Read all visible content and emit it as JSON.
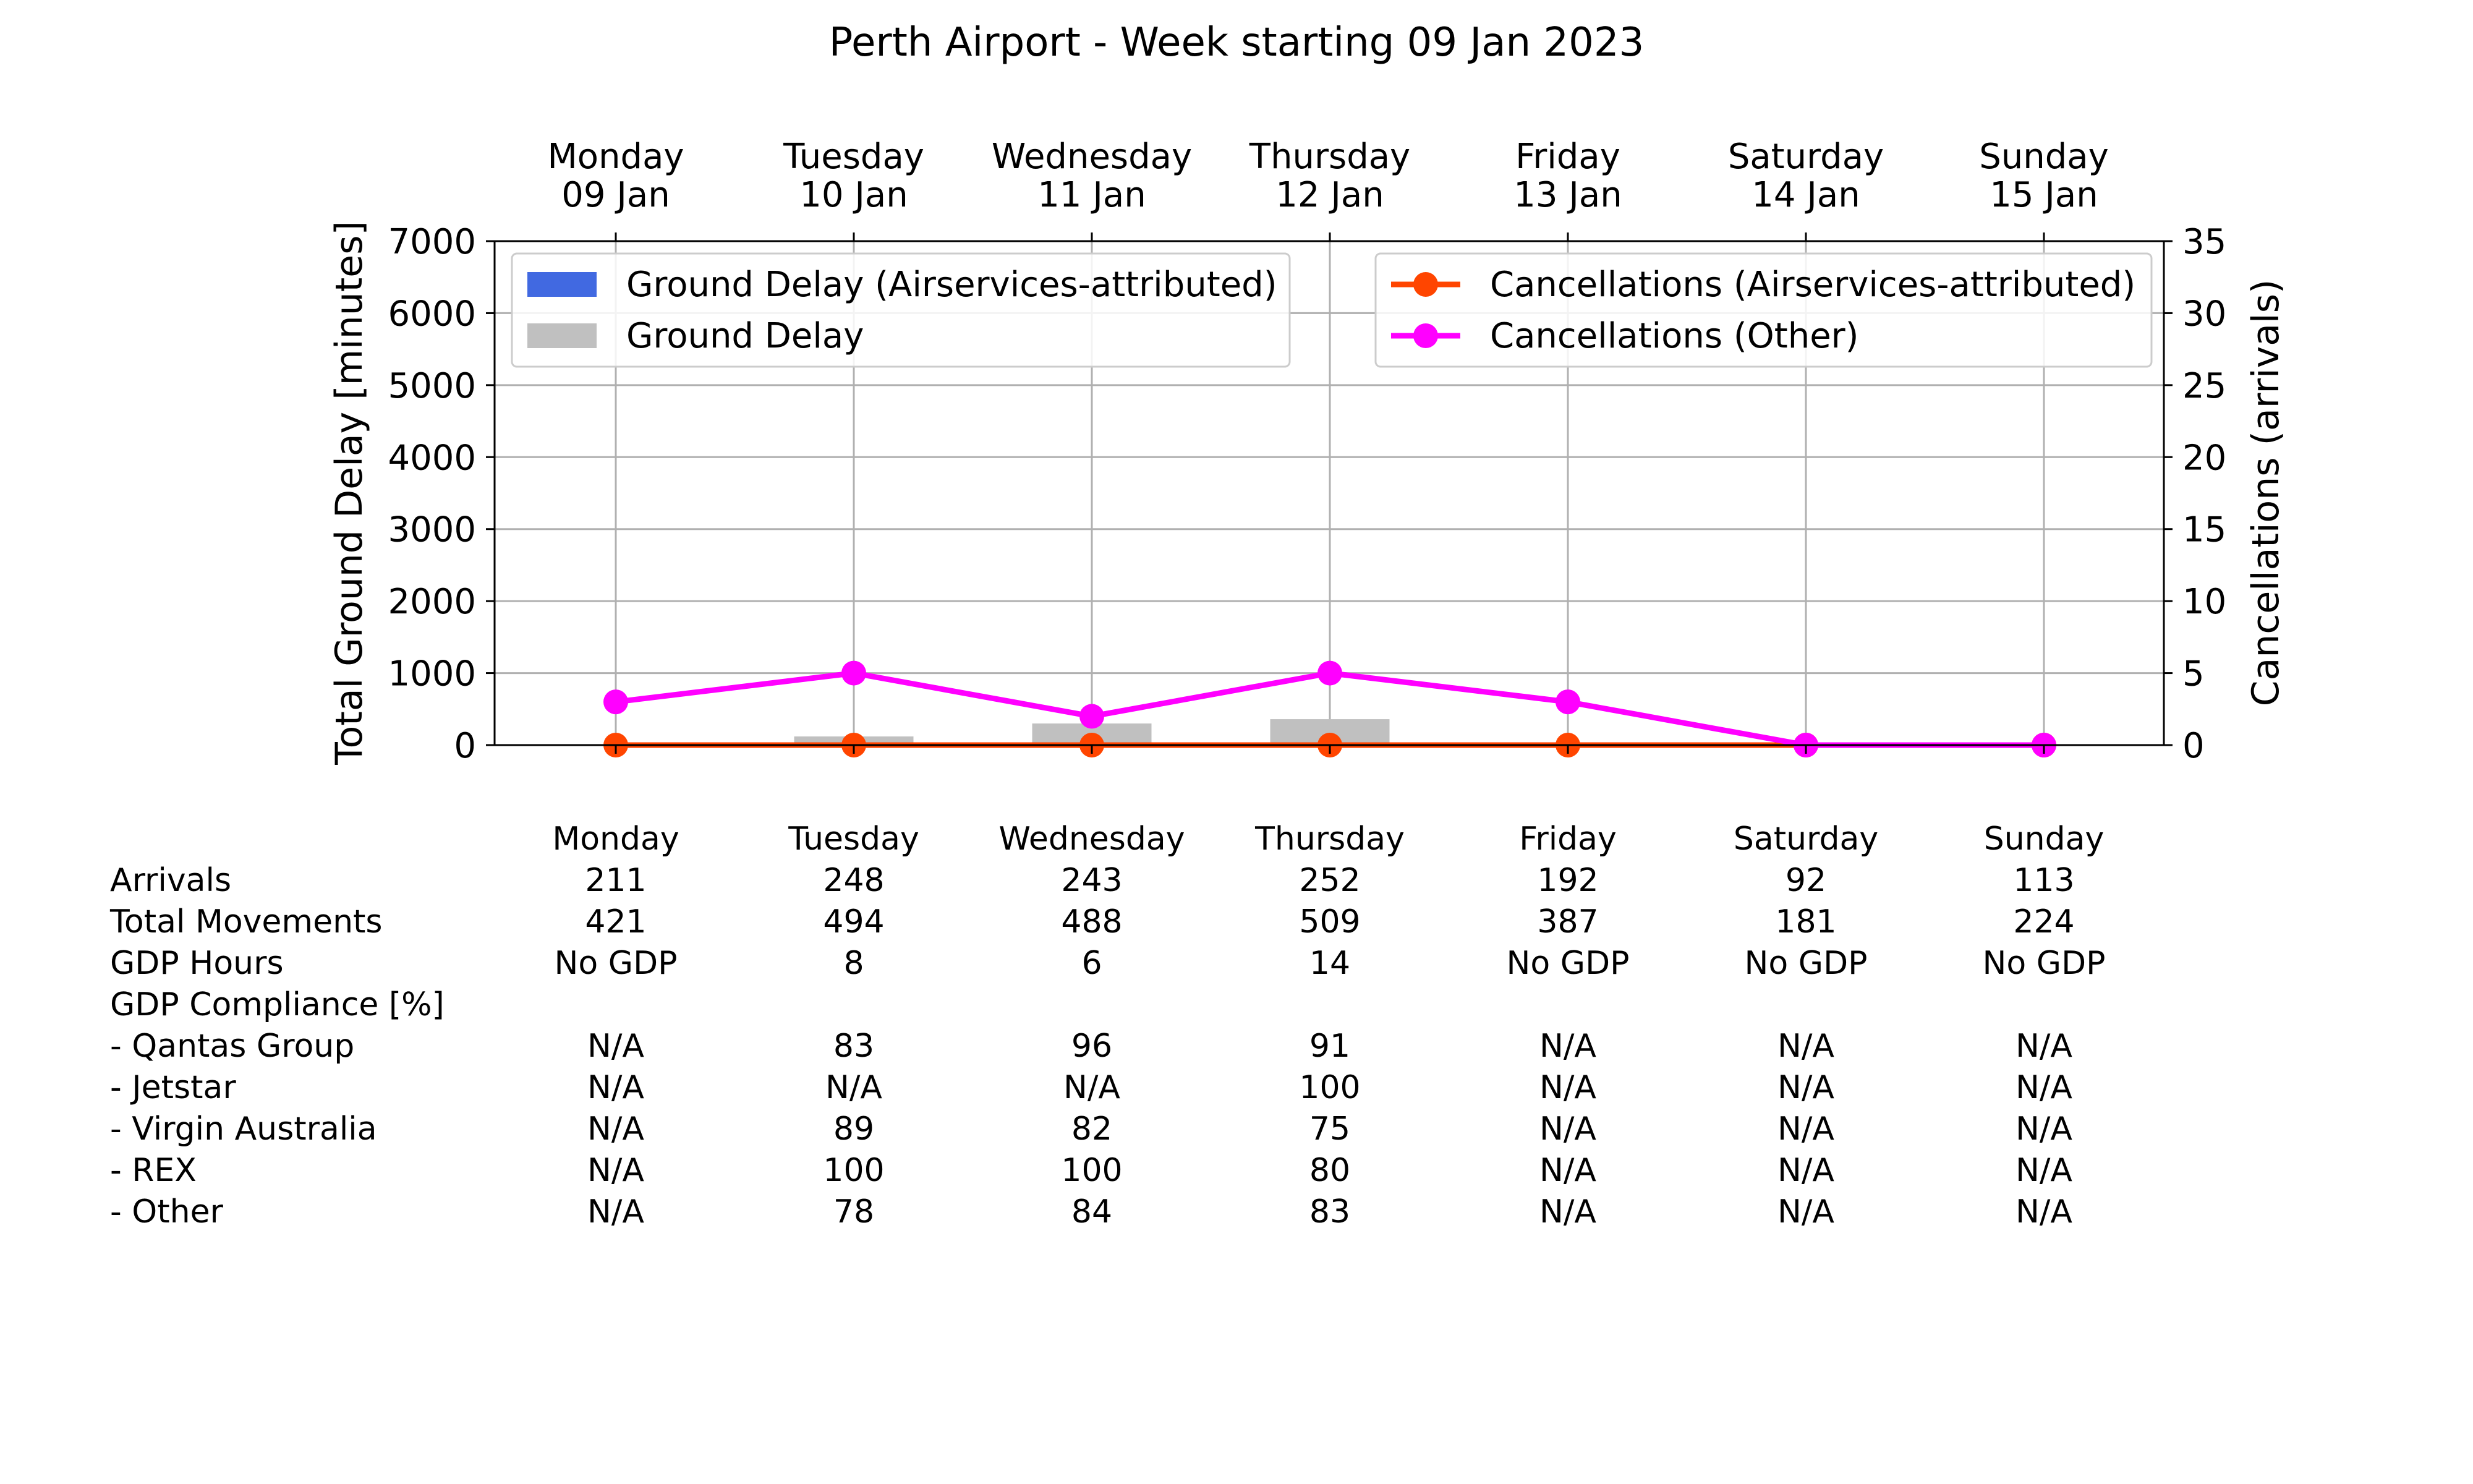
{
  "chart_data": {
    "type": "bar",
    "title": "Perth Airport - Week starting 09 Jan 2023",
    "categories": [
      "Monday",
      "Tuesday",
      "Wednesday",
      "Thursday",
      "Friday",
      "Saturday",
      "Sunday"
    ],
    "dates": [
      "09 Jan",
      "10 Jan",
      "11 Jan",
      "12 Jan",
      "13 Jan",
      "14 Jan",
      "15 Jan"
    ],
    "ylabel": "Total Ground Delay [minutes]",
    "ylim": [
      0,
      7000
    ],
    "yticks": [
      "0",
      "1000",
      "2000",
      "3000",
      "4000",
      "5000",
      "6000",
      "7000"
    ],
    "y2label": "Cancellations (arrivals)",
    "y2lim": [
      0,
      35
    ],
    "y2ticks": [
      "0",
      "5",
      "10",
      "15",
      "20",
      "25",
      "30",
      "35"
    ],
    "grid": true,
    "legend_left_placement": "upper-left",
    "legend_right_placement": "upper-right",
    "series": [
      {
        "name": "Ground Delay (Airservices-attributed)",
        "kind": "bar",
        "axis": "left",
        "color": "#4169e1",
        "values": [
          0,
          0,
          0,
          0,
          0,
          0,
          0
        ]
      },
      {
        "name": "Ground Delay",
        "kind": "bar",
        "axis": "left",
        "color": "#c0c0c0",
        "values": [
          0,
          120,
          300,
          360,
          0,
          0,
          0
        ]
      },
      {
        "name": "Cancellations (Airservices-attributed)",
        "kind": "line",
        "axis": "right",
        "color": "#ff4500",
        "values": [
          0,
          0,
          0,
          0,
          0,
          0,
          0
        ]
      },
      {
        "name": "Cancellations (Other)",
        "kind": "line",
        "axis": "right",
        "color": "#ff00ff",
        "values": [
          3,
          5,
          2,
          5,
          3,
          0,
          0
        ]
      }
    ]
  },
  "table": {
    "headers": [
      "Monday",
      "Tuesday",
      "Wednesday",
      "Thursday",
      "Friday",
      "Saturday",
      "Sunday"
    ],
    "rows": [
      {
        "label": "Arrivals",
        "values": [
          "211",
          "248",
          "243",
          "252",
          "192",
          "92",
          "113"
        ]
      },
      {
        "label": "Total Movements",
        "values": [
          "421",
          "494",
          "488",
          "509",
          "387",
          "181",
          "224"
        ]
      },
      {
        "label": "GDP Hours",
        "values": [
          "No GDP",
          "8",
          "6",
          "14",
          "No GDP",
          "No GDP",
          "No GDP"
        ]
      },
      {
        "label": "GDP Compliance [%]",
        "values": [
          "",
          "",
          "",
          "",
          "",
          "",
          ""
        ]
      },
      {
        "label": "  - Qantas Group",
        "values": [
          "N/A",
          "83",
          "96",
          "91",
          "N/A",
          "N/A",
          "N/A"
        ]
      },
      {
        "label": "  - Jetstar",
        "values": [
          "N/A",
          "N/A",
          "N/A",
          "100",
          "N/A",
          "N/A",
          "N/A"
        ]
      },
      {
        "label": "  - Virgin Australia",
        "values": [
          "N/A",
          "89",
          "82",
          "75",
          "N/A",
          "N/A",
          "N/A"
        ]
      },
      {
        "label": "  - REX",
        "values": [
          "N/A",
          "100",
          "100",
          "80",
          "N/A",
          "N/A",
          "N/A"
        ]
      },
      {
        "label": "  - Other",
        "values": [
          "N/A",
          "78",
          "84",
          "83",
          "N/A",
          "N/A",
          "N/A"
        ]
      }
    ]
  }
}
